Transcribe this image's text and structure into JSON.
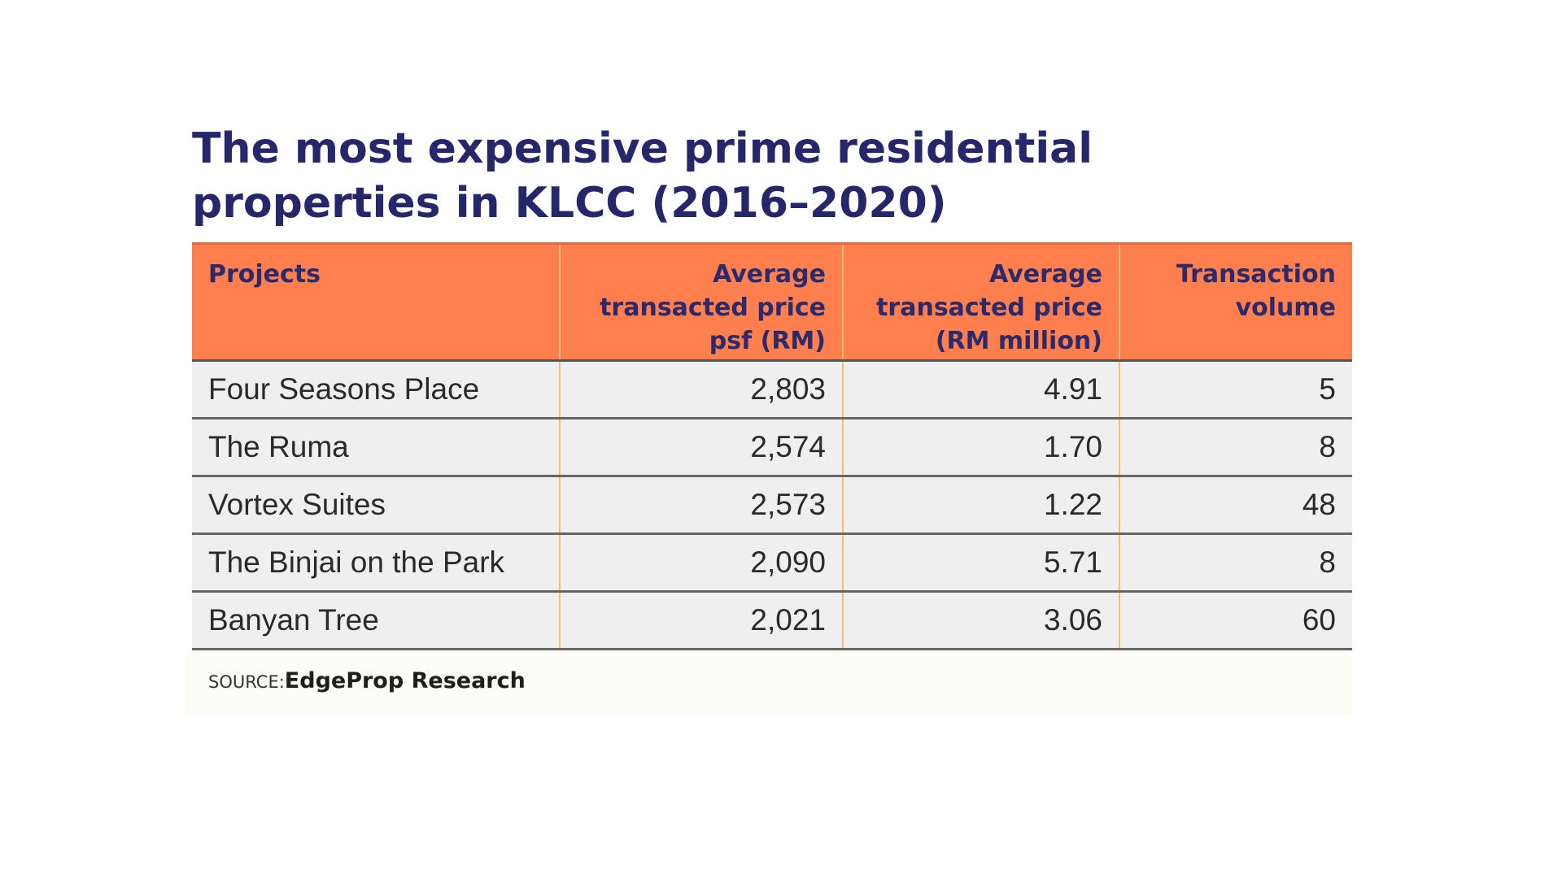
{
  "chart_data": {
    "type": "table",
    "title_lines": [
      "The most expensive prime residential",
      "properties in KLCC (2016–2020)"
    ],
    "columns": [
      [
        "Projects"
      ],
      [
        "Average",
        "transacted price",
        "psf (RM)"
      ],
      [
        "Average",
        "transacted price",
        "(RM million)"
      ],
      [
        "Transaction",
        "volume"
      ]
    ],
    "rows": [
      {
        "project": "Four Seasons Place",
        "psf": "2,803",
        "price_million": "4.91",
        "volume": "5"
      },
      {
        "project": "The Ruma",
        "psf": "2,574",
        "price_million": "1.70",
        "volume": "8"
      },
      {
        "project": "Vortex Suites",
        "psf": "2,573",
        "price_million": "1.22",
        "volume": "48"
      },
      {
        "project": "The Binjai on the Park",
        "psf": "2,090",
        "price_million": "5.71",
        "volume": "8"
      },
      {
        "project": "Banyan Tree",
        "psf": "2,021",
        "price_million": "3.06",
        "volume": "60"
      }
    ],
    "source_label": "SOURCE:",
    "source_name": "EdgeProp Research"
  },
  "colors": {
    "title": "#26266b",
    "header_bg": "#ff7f4f",
    "header_text": "#2c2a6b",
    "row_bg": "#efefef",
    "row_divider": "#666666",
    "column_divider": "#f0c07a",
    "source_bg": "#fdfdf7"
  }
}
